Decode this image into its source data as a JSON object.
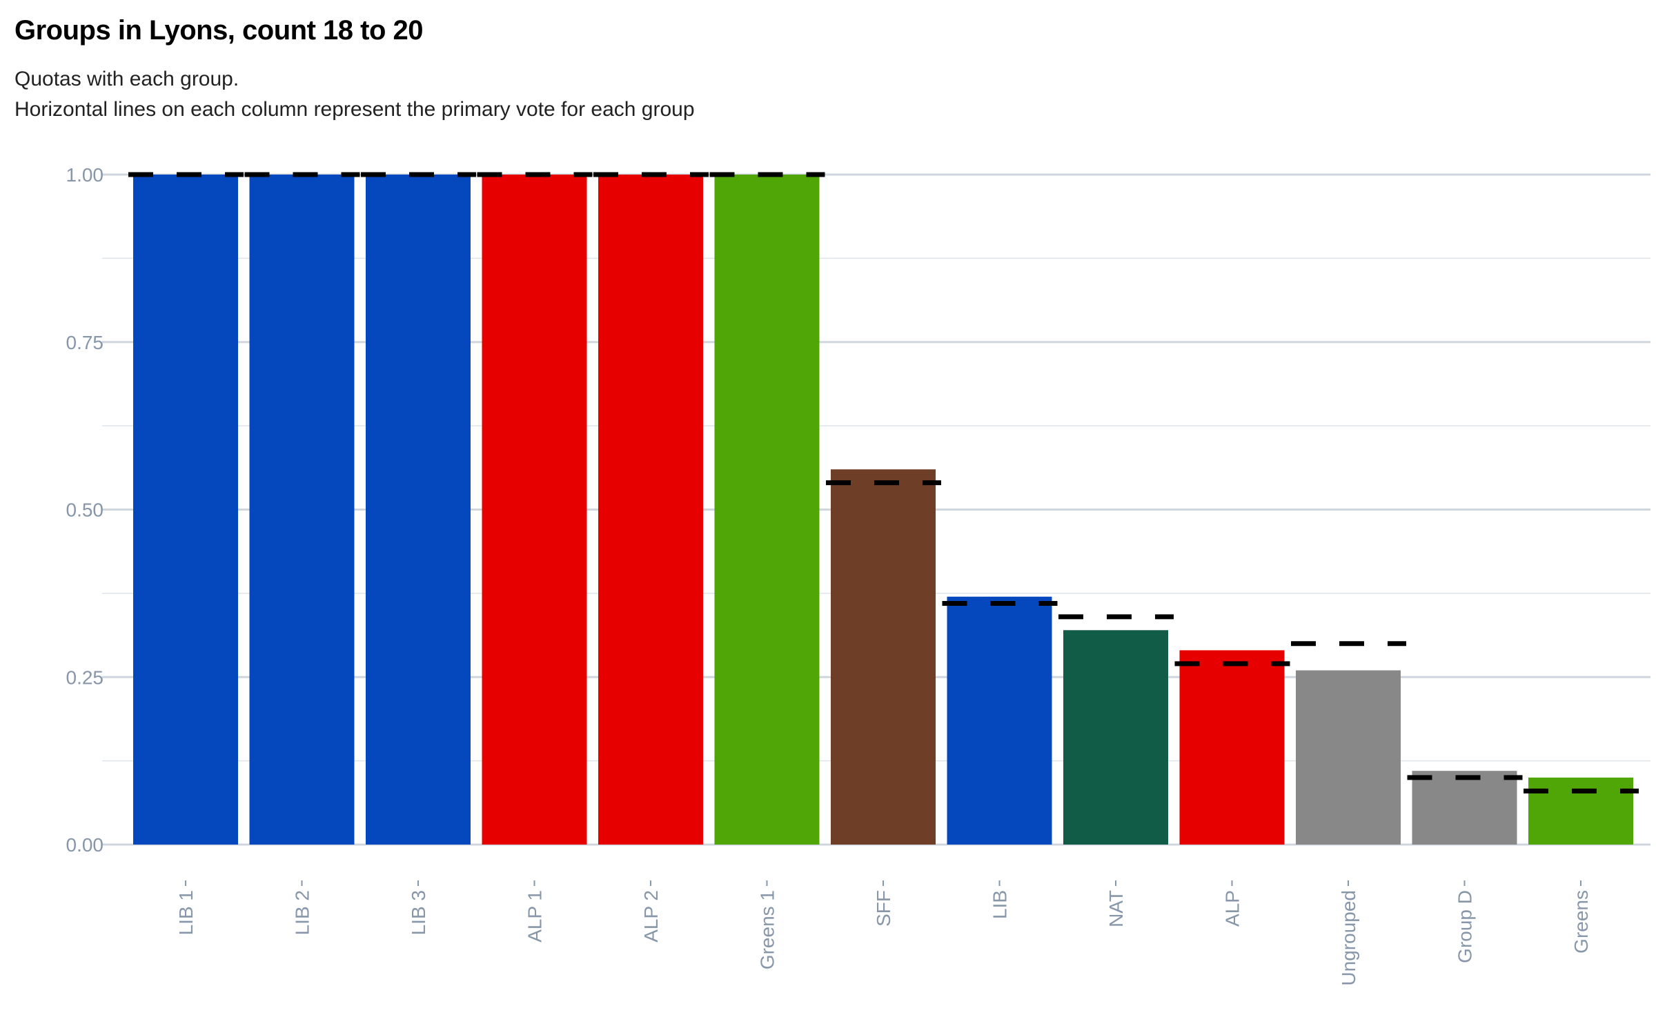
{
  "title": "Groups in Lyons, count 18 to 20",
  "subtitle_line1": "Quotas with each group.",
  "subtitle_line2": "Horizontal lines on each column represent the primary vote for each group",
  "chart_data": {
    "type": "bar",
    "title": "Groups in Lyons, count 18 to 20",
    "subtitle": "Quotas with each group. Horizontal lines on each column represent the primary vote for each group",
    "xlabel": "",
    "ylabel": "",
    "ylim": [
      0,
      1
    ],
    "yticks": [
      "0.00",
      "0.25",
      "0.50",
      "0.75",
      "1.00"
    ],
    "grid": true,
    "legend": "none",
    "categories": [
      "LIB 1",
      "LIB 2",
      "LIB 3",
      "ALP 1",
      "ALP 2",
      "Greens 1",
      "SFF",
      "LIB",
      "NAT",
      "ALP",
      "Ungrouped",
      "Group D",
      "Greens"
    ],
    "values": [
      1.0,
      1.0,
      1.0,
      1.0,
      1.0,
      1.0,
      0.56,
      0.37,
      0.32,
      0.29,
      0.26,
      0.11,
      0.1
    ],
    "primary_vote": [
      1.0,
      1.0,
      1.0,
      1.0,
      1.0,
      1.0,
      0.54,
      0.36,
      0.34,
      0.27,
      0.3,
      0.1,
      0.08
    ],
    "colors": [
      "#0547bd",
      "#0547bd",
      "#0547bd",
      "#e60000",
      "#e60000",
      "#51a607",
      "#6e3e27",
      "#0547bd",
      "#115c46",
      "#e60000",
      "#888888",
      "#888888",
      "#51a607"
    ]
  }
}
